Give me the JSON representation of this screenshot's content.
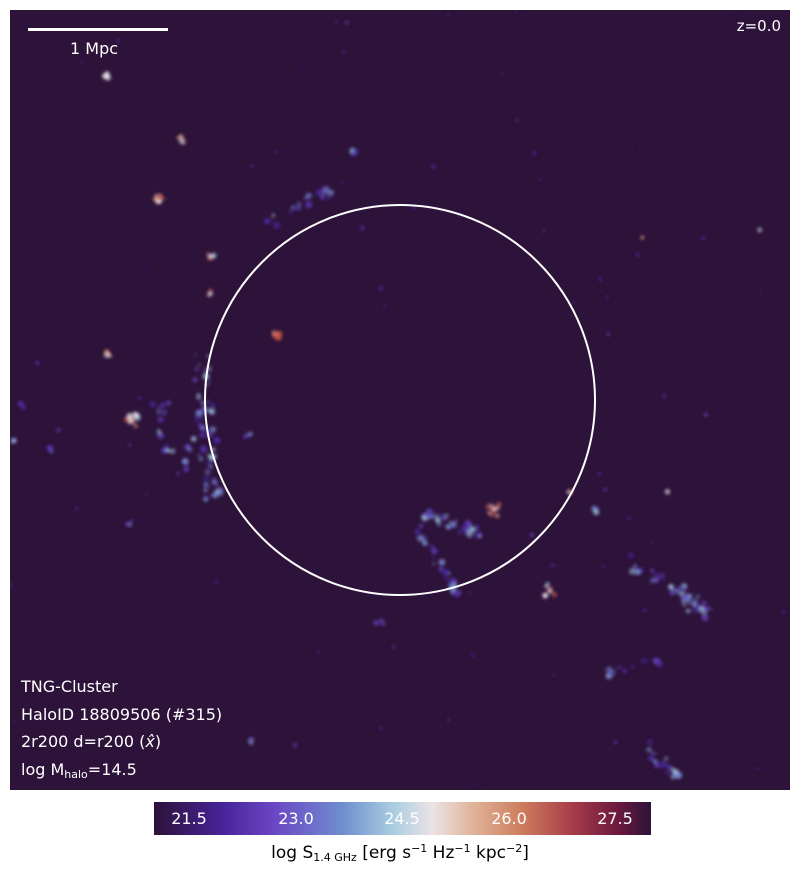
{
  "redshift_label": "z=0.0",
  "scale_bar": {
    "label": "1 Mpc"
  },
  "info": {
    "simulation": "TNG-Cluster",
    "halo": "HaloID 18809506 (#315)",
    "projection_prefix": "2r200 d=r200 (",
    "projection_axis": "x̂",
    "projection_suffix": ")",
    "mass_prefix": "log M",
    "mass_sub": "halo",
    "mass_suffix": "=14.5"
  },
  "colorbar": {
    "ticks": [
      "21.5",
      "23.0",
      "24.5",
      "26.0",
      "27.5"
    ],
    "label_prefix": "log S",
    "label_sub": "1.4 GHz",
    "label_units_a": " [erg s",
    "label_exp1": "−1",
    "label_units_b": " Hz",
    "label_exp2": "−1",
    "label_units_c": " kpc",
    "label_exp3": "−2",
    "label_units_d": "]"
  },
  "colors": {
    "background": "#2d1239",
    "circle": "#ffffff"
  }
}
